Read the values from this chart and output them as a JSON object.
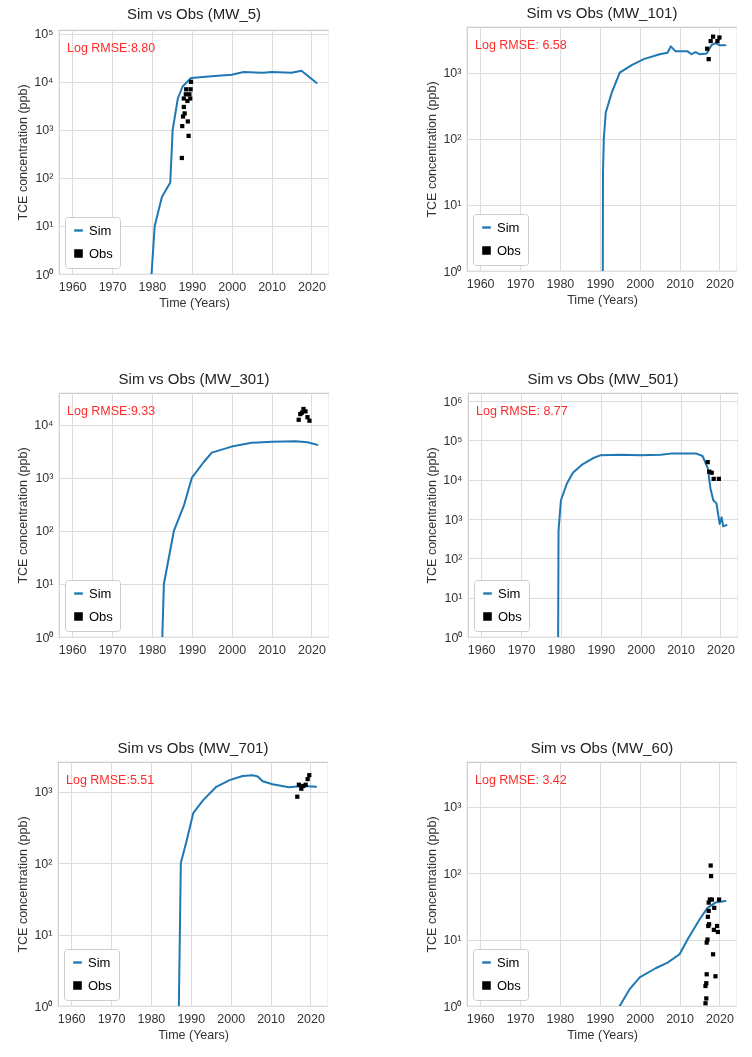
{
  "chart_data": [
    {
      "type": "line",
      "title": "Sim vs Obs (MW_5)",
      "xlabel": "Time (Years)",
      "ylabel": "TCE concentration (ppb)",
      "annotations": [
        "Log RMSE:8.80"
      ],
      "xlim": [
        1956.7,
        2024.4
      ],
      "xticks": [
        1960,
        1970,
        1980,
        1990,
        2000,
        2010,
        2020
      ],
      "ylim": [
        1,
        120000
      ],
      "yticks": [
        {
          "value": 1,
          "label": "10⁰"
        },
        {
          "value": 10,
          "label": "10¹"
        },
        {
          "value": 100,
          "label": "10²"
        },
        {
          "value": 1000,
          "label": "10³"
        },
        {
          "value": 10000,
          "label": "10⁴"
        },
        {
          "value": 100000,
          "label": "10⁵"
        }
      ],
      "log": true,
      "grid": true,
      "legend": "bottom left",
      "series": [
        {
          "name": "Sim",
          "type": "line",
          "color": "#1f77b4",
          "x": [
            1979.9,
            1980.7,
            1982.5,
            1984.6,
            1985.2,
            1986.5,
            1987.7,
            1989.8,
            1995,
            2000,
            2003,
            2008,
            2010,
            2015,
            2017.5,
            2021.3
          ],
          "values": [
            1,
            10,
            40,
            80,
            1000,
            4500,
            8000,
            12000,
            13000,
            14000,
            16000,
            15500,
            16000,
            15500,
            17000,
            9500
          ]
        },
        {
          "name": "Obs",
          "type": "scatter",
          "marker": "square",
          "color": "#000000",
          "x": [
            1987.5,
            1987.6,
            1987.8,
            1988.2,
            1988.0,
            1988.0,
            1989.0,
            1989.2,
            1988.5,
            1988.6,
            1989.6,
            1989.7,
            1989.4,
            1989.8,
            1988.9
          ],
          "values": [
            260,
            1200,
            1900,
            2200,
            3000,
            4500,
            1500,
            750,
            5500,
            7000,
            4500,
            7000,
            5500,
            10000,
            4000
          ]
        }
      ]
    },
    {
      "type": "line",
      "title": "Sim vs Obs (MW_101)",
      "xlabel": "Time (Years)",
      "ylabel": "TCE concentration (ppb)",
      "annotations": [
        "Log RMSE: 6.58"
      ],
      "xlim": [
        1956.7,
        2024.4
      ],
      "xticks": [
        1960,
        1970,
        1980,
        1990,
        2000,
        2010,
        2020
      ],
      "ylim": [
        1,
        4900
      ],
      "yticks": [
        {
          "value": 1,
          "label": "10⁰"
        },
        {
          "value": 10,
          "label": "10¹"
        },
        {
          "value": 100,
          "label": "10²"
        },
        {
          "value": 1000,
          "label": "10³"
        }
      ],
      "log": true,
      "grid": true,
      "legend": "bottom left",
      "series": [
        {
          "name": "Sim",
          "type": "line",
          "color": "#1f77b4",
          "x": [
            1990.75,
            1990.8,
            1991,
            1991.5,
            1993,
            1995,
            1998,
            2001,
            2005,
            2007,
            2007.8,
            2009,
            2012,
            2013,
            2014,
            2015,
            2016.8,
            2018,
            2019,
            2020,
            2021.5
          ],
          "values": [
            1,
            30,
            100,
            250,
            500,
            1000,
            1300,
            1600,
            1900,
            2000,
            2500,
            2100,
            2100,
            1900,
            2050,
            1900,
            1950,
            2600,
            2800,
            2600,
            2600
          ]
        },
        {
          "name": "Obs",
          "type": "scatter",
          "marker": "square",
          "color": "#000000",
          "x": [
            2016.9,
            2017.3,
            2017.8,
            2018.4,
            2019.5,
            2020
          ],
          "values": [
            2300,
            1600,
            3000,
            3500,
            3000,
            3400
          ]
        }
      ]
    },
    {
      "type": "line",
      "title": "Sim vs Obs (MW_301)",
      "ylabel": "TCE concentration (ppb)",
      "annotations": [
        "Log RMSE:9.33"
      ],
      "xlim": [
        1956.7,
        2024.4
      ],
      "xticks": [
        1960,
        1970,
        1980,
        1990,
        2000,
        2010,
        2020
      ],
      "ylim": [
        1,
        40000
      ],
      "yticks": [
        {
          "value": 1,
          "label": "10⁰"
        },
        {
          "value": 10,
          "label": "10¹"
        },
        {
          "value": 100,
          "label": "10²"
        },
        {
          "value": 1000,
          "label": "10³"
        },
        {
          "value": 10000,
          "label": "10⁴"
        }
      ],
      "log": true,
      "grid": true,
      "legend": "bottom left",
      "series": [
        {
          "name": "Sim",
          "type": "line",
          "color": "#1f77b4",
          "x": [
            1982.6,
            1983,
            1985.5,
            1988,
            1990,
            1993,
            1995,
            2000,
            2005,
            2010,
            2016,
            2019,
            2021.5
          ],
          "values": [
            1,
            10,
            100,
            300,
            1000,
            2000,
            3000,
            3900,
            4600,
            4800,
            4900,
            4700,
            4200
          ]
        },
        {
          "name": "Obs",
          "type": "scatter",
          "marker": "square",
          "color": "#000000",
          "x": [
            2016.8,
            2017.2,
            2017.6,
            2018,
            2018.5,
            2019,
            2019.5
          ],
          "values": [
            12500,
            16000,
            17000,
            20000,
            18000,
            14000,
            12000
          ]
        }
      ]
    },
    {
      "type": "line",
      "title": "Sim vs Obs (MW_501)",
      "ylabel": "TCE concentration (ppb)",
      "annotations": [
        "Log RMSE: 8.77"
      ],
      "xlim": [
        1956.7,
        2024.4
      ],
      "xticks": [
        1960,
        1970,
        1980,
        1990,
        2000,
        2010,
        2020
      ],
      "ylim": [
        1,
        1600000
      ],
      "yticks": [
        {
          "value": 1,
          "label": "10⁰"
        },
        {
          "value": 10,
          "label": "10¹"
        },
        {
          "value": 100,
          "label": "10²"
        },
        {
          "value": 1000,
          "label": "10³"
        },
        {
          "value": 10000,
          "label": "10⁴"
        },
        {
          "value": 100000,
          "label": "10⁵"
        },
        {
          "value": 1000000,
          "label": "10⁶"
        }
      ],
      "log": true,
      "grid": true,
      "legend": "bottom left",
      "series": [
        {
          "name": "Sim",
          "type": "line",
          "color": "#1f77b4",
          "x": [
            1979.3,
            1979.4,
            1980,
            1981.5,
            1983,
            1985.5,
            1988,
            1990,
            1995,
            2000,
            2005,
            2007.5,
            2010,
            2014,
            2015.5,
            2016.8,
            2017.5,
            2018.2,
            2019,
            2019.8,
            2020.3,
            2020.7,
            2021.5
          ],
          "values": [
            1,
            500,
            3000,
            8000,
            15000,
            25000,
            35000,
            42000,
            43000,
            42000,
            43000,
            46000,
            46000,
            46000,
            40000,
            20000,
            6000,
            3000,
            2500,
            750,
            1100,
            650,
            700
          ]
        },
        {
          "name": "Obs",
          "type": "scatter",
          "marker": "square",
          "color": "#000000",
          "x": [
            2016.8,
            2017.2,
            2017.8,
            2018.3,
            2019.6
          ],
          "values": [
            28000,
            16000,
            15000,
            10500,
            10500
          ]
        }
      ]
    },
    {
      "type": "line",
      "title": "Sim vs Obs (MW_701)",
      "xlabel": "Time (Years)",
      "ylabel": "TCE concentration (ppb)",
      "annotations": [
        "Log RMSE:5.51"
      ],
      "xlim": [
        1956.7,
        2024.4
      ],
      "xticks": [
        1960,
        1970,
        1980,
        1990,
        2000,
        2010,
        2020
      ],
      "ylim": [
        1,
        2600
      ],
      "yticks": [
        {
          "value": 1,
          "label": "10⁰"
        },
        {
          "value": 10,
          "label": "10¹"
        },
        {
          "value": 100,
          "label": "10²"
        },
        {
          "value": 1000,
          "label": "10³"
        }
      ],
      "log": true,
      "grid": true,
      "legend": "bottom left",
      "series": [
        {
          "name": "Sim",
          "type": "line",
          "color": "#1f77b4",
          "x": [
            1987,
            1987.5,
            1989,
            1990.6,
            1993.1,
            1996.4,
            1999.7,
            2003,
            2005.5,
            2006.8,
            2008,
            2010.5,
            2014.6,
            2018,
            2021.4
          ],
          "values": [
            1,
            100,
            210,
            500,
            760,
            1170,
            1450,
            1660,
            1700,
            1630,
            1400,
            1270,
            1150,
            1200,
            1170
          ]
        },
        {
          "name": "Obs",
          "type": "scatter",
          "marker": "square",
          "color": "#000000",
          "x": [
            2016.7,
            2017.1,
            2017.7,
            2018.2,
            2018.8,
            2019.3,
            2019.7
          ],
          "values": [
            850,
            1250,
            1100,
            1200,
            1250,
            1500,
            1700
          ]
        }
      ]
    },
    {
      "type": "line",
      "title": "Sim vs Obs (MW_60)",
      "xlabel": "Time (Years)",
      "ylabel": "TCE concentration (ppb)",
      "annotations": [
        "Log RMSE: 3.42"
      ],
      "xlim": [
        1956.7,
        2024.4
      ],
      "xticks": [
        1960,
        1970,
        1980,
        1990,
        2000,
        2010,
        2020
      ],
      "ylim": [
        1,
        4700
      ],
      "yticks": [
        {
          "value": 1,
          "label": "10⁰"
        },
        {
          "value": 10,
          "label": "10¹"
        },
        {
          "value": 100,
          "label": "10²"
        },
        {
          "value": 1000,
          "label": "10³"
        }
      ],
      "log": true,
      "grid": true,
      "legend": "bottom left",
      "series": [
        {
          "name": "Sim",
          "type": "line",
          "color": "#1f77b4",
          "x": [
            1995,
            1997.5,
            2000,
            2004,
            2007,
            2010,
            2012,
            2015,
            2017,
            2019,
            2021.5
          ],
          "values": [
            1,
            1.8,
            2.7,
            3.7,
            4.5,
            6,
            10,
            20,
            30,
            36,
            38
          ]
        },
        {
          "name": "Obs",
          "type": "scatter",
          "marker": "square",
          "color": "#000000",
          "x": [
            2016.5,
            2016.7,
            2016.5,
            2016.7,
            2016.8,
            2016.8,
            2017,
            2017.2,
            2017.1,
            2017.3,
            2017.3,
            2017.6,
            2017.8,
            2017.9,
            2018.1,
            2018.4,
            2018.6,
            2018.7,
            2019,
            2019.4,
            2019.6,
            2019.9,
            2017.4
          ],
          "values": [
            1.1,
            1.3,
            2,
            2.2,
            3,
            9,
            10,
            16,
            22,
            27,
            36,
            40,
            130,
            90,
            40,
            6,
            14,
            30,
            2.8,
            16,
            13,
            40,
            17
          ]
        }
      ]
    }
  ]
}
